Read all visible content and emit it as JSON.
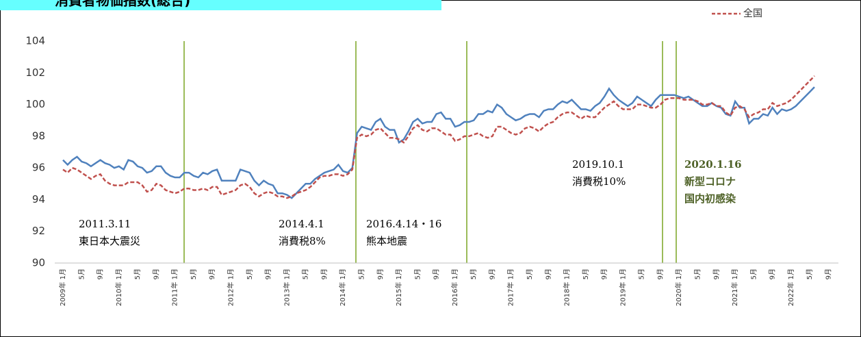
{
  "chart_data": {
    "type": "line",
    "title": "消費者物価指数(総合)",
    "categories": [
      "2009年 1月",
      null,
      null,
      null,
      "5月",
      null,
      null,
      null,
      "9月",
      null,
      null,
      null,
      "2010年 1月",
      null,
      null,
      null,
      "5月",
      null,
      null,
      null,
      "9月",
      null,
      null,
      null,
      "2011年 1月",
      null,
      null,
      null,
      "5月",
      null,
      null,
      null,
      "9月",
      null,
      null,
      null,
      "2012年 1月",
      null,
      null,
      null,
      "5月",
      null,
      null,
      null,
      "9月",
      null,
      null,
      null,
      "2013年 1月",
      null,
      null,
      null,
      "5月",
      null,
      null,
      null,
      "9月",
      null,
      null,
      null,
      "2014年 1月",
      null,
      null,
      null,
      "5月",
      null,
      null,
      null,
      "9月",
      null,
      null,
      null,
      "2015年 1月",
      null,
      null,
      null,
      "5月",
      null,
      null,
      null,
      "9月",
      null,
      null,
      null,
      "2016年 1月",
      null,
      null,
      null,
      "5月",
      null,
      null,
      null,
      "9月",
      null,
      null,
      null,
      "2017年 1月",
      null,
      null,
      null,
      "5月",
      null,
      null,
      null,
      "9月",
      null,
      null,
      null,
      "2018年 1月",
      null,
      null,
      null,
      "5月",
      null,
      null,
      null,
      "9月",
      null,
      null,
      null,
      "2019年 1月",
      null,
      null,
      null,
      "5月",
      null,
      null,
      null,
      "9月",
      null,
      null,
      null,
      "2020年 1月",
      null,
      null,
      null,
      "5月",
      null,
      null,
      null,
      "9月",
      null,
      null,
      null,
      "2021年 1月",
      null,
      null,
      null,
      "5月",
      null,
      null,
      null,
      "9月",
      null,
      null,
      null,
      "2022年 1月",
      null,
      null,
      null,
      "5月",
      null,
      null,
      null,
      "9月",
      null,
      null,
      null
    ],
    "series": [
      {
        "color": "#4f81bd",
        "dash": false,
        "values": [
          96.5,
          96.2,
          96.5,
          96.7,
          96.4,
          96.3,
          96.1,
          96.3,
          96.5,
          96.3,
          96.2,
          96.0,
          96.1,
          95.9,
          96.5,
          96.4,
          96.1,
          96.0,
          95.7,
          95.8,
          96.1,
          96.1,
          95.7,
          95.5,
          95.4,
          95.4,
          95.7,
          95.7,
          95.5,
          95.4,
          95.7,
          95.6,
          95.8,
          95.9,
          95.2,
          95.2,
          95.2,
          95.2,
          95.9,
          95.8,
          95.7,
          95.2,
          94.9,
          95.2,
          95.0,
          94.9,
          94.4,
          94.4,
          94.3,
          94.1,
          94.4,
          94.7,
          95.0,
          95.0,
          95.3,
          95.5,
          95.7,
          95.8,
          95.9,
          96.2,
          95.8,
          95.7,
          96.0,
          98.2,
          98.6,
          98.5,
          98.4,
          98.9,
          99.1,
          98.6,
          98.4,
          98.4,
          97.6,
          97.8,
          98.3,
          98.9,
          99.1,
          98.8,
          98.9,
          98.9,
          99.4,
          99.5,
          99.1,
          99.1,
          98.6,
          98.7,
          98.9,
          98.9,
          99.0,
          99.4,
          99.4,
          99.6,
          99.5,
          100.0,
          99.8,
          99.4,
          99.2,
          99.0,
          99.1,
          99.3,
          99.4,
          99.4,
          99.2,
          99.6,
          99.7,
          99.7,
          100.0,
          100.2,
          100.1,
          100.3,
          100.0,
          99.7,
          99.7,
          99.6,
          99.9,
          100.1,
          100.5,
          101.0,
          100.6,
          100.3,
          100.1,
          99.9,
          100.1,
          100.5,
          100.3,
          100.1,
          99.9,
          100.3,
          100.6,
          100.6,
          100.6,
          100.6,
          100.5,
          100.4,
          100.5,
          100.3,
          100.1,
          99.9,
          99.9,
          100.1,
          99.9,
          99.8,
          99.4,
          99.3,
          100.2,
          99.8,
          99.8,
          98.8,
          99.1,
          99.1,
          99.4,
          99.3,
          99.8,
          99.4,
          99.7,
          99.6,
          99.7,
          99.9,
          100.2,
          100.5,
          100.8,
          101.1,
          null,
          null,
          null,
          null,
          null,
          null
        ]
      },
      {
        "name": "全国",
        "color": "#c0504d",
        "dash": true,
        "values": [
          95.9,
          95.7,
          96.0,
          95.9,
          95.7,
          95.5,
          95.3,
          95.5,
          95.6,
          95.2,
          95.0,
          94.9,
          94.9,
          94.9,
          95.1,
          95.1,
          95.1,
          94.9,
          94.5,
          94.6,
          95.0,
          94.9,
          94.6,
          94.5,
          94.4,
          94.5,
          94.7,
          94.7,
          94.6,
          94.6,
          94.7,
          94.6,
          94.8,
          94.8,
          94.3,
          94.4,
          94.5,
          94.6,
          94.9,
          95.0,
          94.8,
          94.4,
          94.2,
          94.4,
          94.5,
          94.4,
          94.2,
          94.2,
          94.1,
          94.2,
          94.4,
          94.5,
          94.6,
          94.8,
          95.1,
          95.4,
          95.5,
          95.5,
          95.6,
          95.6,
          95.5,
          95.6,
          95.9,
          97.9,
          98.1,
          98.0,
          98.1,
          98.4,
          98.5,
          98.2,
          97.9,
          97.9,
          97.8,
          97.6,
          98.0,
          98.5,
          98.7,
          98.4,
          98.3,
          98.5,
          98.5,
          98.3,
          98.1,
          98.1,
          97.7,
          97.8,
          98.0,
          98.0,
          98.1,
          98.2,
          98.0,
          97.9,
          98.0,
          98.6,
          98.6,
          98.4,
          98.2,
          98.1,
          98.2,
          98.5,
          98.6,
          98.5,
          98.3,
          98.6,
          98.8,
          98.9,
          99.2,
          99.4,
          99.5,
          99.5,
          99.3,
          99.1,
          99.3,
          99.2,
          99.2,
          99.5,
          99.8,
          100.0,
          100.2,
          99.9,
          99.7,
          99.7,
          99.7,
          100.0,
          100.0,
          99.9,
          99.8,
          99.8,
          100.0,
          100.3,
          100.4,
          100.4,
          100.4,
          100.3,
          100.3,
          100.3,
          100.2,
          100.0,
          100.0,
          100.1,
          99.9,
          99.9,
          99.5,
          99.3,
          99.8,
          99.9,
          99.7,
          99.2,
          99.4,
          99.5,
          99.7,
          99.7,
          100.1,
          99.9,
          100.0,
          100.1,
          100.3,
          100.6,
          100.9,
          101.2,
          101.5,
          101.8,
          null,
          null,
          null,
          null,
          null,
          null
        ]
      }
    ],
    "ylim": [
      90,
      104
    ],
    "yticks": [
      90,
      92,
      94,
      96,
      98,
      100,
      102,
      104
    ],
    "annotations": [
      [
        "2011.3.11",
        "東日本大震災"
      ],
      [
        "2014.4.1",
        "消費税8%"
      ],
      [
        "2016.4.14・16",
        "熊本地震"
      ],
      [
        "2019.10.1",
        "消費税10%"
      ],
      [
        "2020.1.16",
        "新型コロナ",
        "国内初感染"
      ]
    ]
  }
}
